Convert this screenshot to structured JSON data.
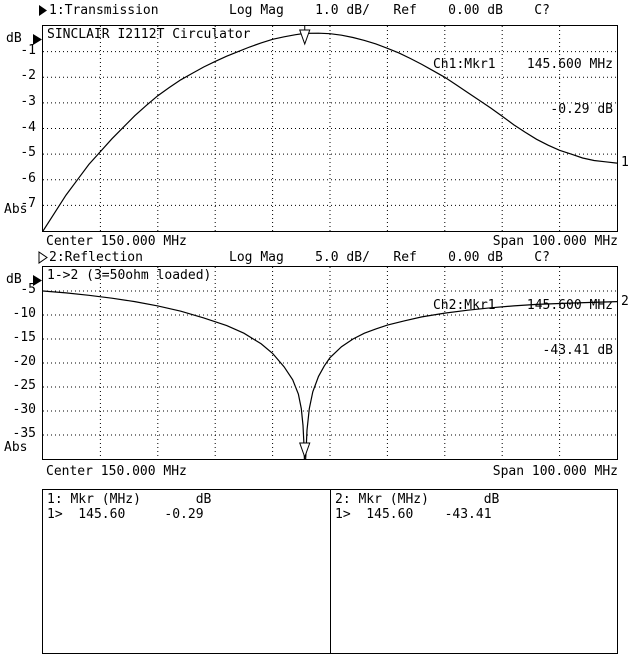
{
  "display": {
    "fg": "#000000",
    "bg": "#ffffff"
  },
  "marker_table": {
    "ch1_header": "1: Mkr (MHz)       dB",
    "ch1_row": "1>  145.60     -0.29",
    "ch2_header": "2: Mkr (MHz)       dB",
    "ch2_row": "1>  145.60    -43.41"
  },
  "chart_data": [
    {
      "type": "line",
      "channel": "1",
      "status_line": "1:Transmission         Log Mag    1.0 dB/   Ref    0.00 dB    C?",
      "title": "SINCLAIR I2112T Circulator",
      "marker_line1": "Ch1:Mkr1    145.600 MHz",
      "marker_line2": "-0.29 dB",
      "y_unit_top": "dB",
      "y_unit_bottom": "Abs",
      "x_center_label": "Center 150.000 MHz",
      "x_span_label": "Span 100.000 MHz",
      "trace_number": "1",
      "xlim": [
        100,
        200
      ],
      "ylim": [
        -8,
        0
      ],
      "scale_db_per_div": 1.0,
      "ref_db": 0.0,
      "divisions": {
        "x": 10,
        "y": 8
      },
      "y_tick_labels": [
        "-1",
        "-2",
        "-3",
        "-4",
        "-5",
        "-6",
        "-7"
      ],
      "marker": {
        "freq_mhz": 145.6,
        "value_db": -0.29,
        "arrow": "top"
      },
      "points": [
        [
          100,
          -8.0
        ],
        [
          102,
          -7.3
        ],
        [
          104,
          -6.6
        ],
        [
          106,
          -6.0
        ],
        [
          108,
          -5.4
        ],
        [
          110,
          -4.9
        ],
        [
          112,
          -4.4
        ],
        [
          114,
          -3.95
        ],
        [
          116,
          -3.5
        ],
        [
          118,
          -3.1
        ],
        [
          120,
          -2.72
        ],
        [
          122,
          -2.4
        ],
        [
          124,
          -2.1
        ],
        [
          126,
          -1.85
        ],
        [
          128,
          -1.6
        ],
        [
          130,
          -1.38
        ],
        [
          132,
          -1.18
        ],
        [
          134,
          -1.0
        ],
        [
          136,
          -0.82
        ],
        [
          138,
          -0.66
        ],
        [
          140,
          -0.52
        ],
        [
          142,
          -0.42
        ],
        [
          144,
          -0.34
        ],
        [
          145.6,
          -0.29
        ],
        [
          148,
          -0.28
        ],
        [
          150,
          -0.3
        ],
        [
          152,
          -0.36
        ],
        [
          154,
          -0.45
        ],
        [
          156,
          -0.56
        ],
        [
          158,
          -0.7
        ],
        [
          160,
          -0.87
        ],
        [
          162,
          -1.05
        ],
        [
          164,
          -1.27
        ],
        [
          166,
          -1.5
        ],
        [
          168,
          -1.75
        ],
        [
          170,
          -2.0
        ],
        [
          172,
          -2.3
        ],
        [
          174,
          -2.6
        ],
        [
          176,
          -2.9
        ],
        [
          178,
          -3.2
        ],
        [
          180,
          -3.52
        ],
        [
          182,
          -3.85
        ],
        [
          184,
          -4.15
        ],
        [
          186,
          -4.42
        ],
        [
          188,
          -4.65
        ],
        [
          190,
          -4.85
        ],
        [
          192,
          -5.0
        ],
        [
          194,
          -5.15
        ],
        [
          196,
          -5.25
        ],
        [
          198,
          -5.3
        ],
        [
          200,
          -5.35
        ]
      ]
    },
    {
      "type": "line",
      "channel": "2",
      "status_line": "2:Reflection           Log Mag    5.0 dB/   Ref    0.00 dB    C?",
      "title": "1->2 (3=50ohm loaded)",
      "marker_line1": "Ch2:Mkr1    145.600 MHz",
      "marker_line2": "-43.41 dB",
      "y_unit_top": "dB",
      "y_unit_bottom": "Abs",
      "x_center_label": "Center 150.000 MHz",
      "x_span_label": "Span 100.000 MHz",
      "trace_number": "2",
      "xlim": [
        100,
        200
      ],
      "ylim": [
        -40,
        0
      ],
      "scale_db_per_div": 5.0,
      "ref_db": 0.0,
      "divisions": {
        "x": 10,
        "y": 8
      },
      "y_tick_labels": [
        "-5",
        "-10",
        "-15",
        "-20",
        "-25",
        "-30",
        "-35"
      ],
      "marker": {
        "freq_mhz": 145.6,
        "value_db": -43.41,
        "arrow": "bottom"
      },
      "points": [
        [
          100,
          -5.0
        ],
        [
          104,
          -5.4
        ],
        [
          108,
          -5.9
        ],
        [
          112,
          -6.5
        ],
        [
          116,
          -7.2
        ],
        [
          120,
          -8.1
        ],
        [
          124,
          -9.2
        ],
        [
          128,
          -10.6
        ],
        [
          132,
          -12.2
        ],
        [
          135,
          -13.8
        ],
        [
          138,
          -16.0
        ],
        [
          140,
          -18.0
        ],
        [
          142,
          -20.8
        ],
        [
          143.5,
          -23.5
        ],
        [
          144.5,
          -26.5
        ],
        [
          145,
          -29.5
        ],
        [
          145.3,
          -33.0
        ],
        [
          145.5,
          -38.0
        ],
        [
          145.6,
          -43.41
        ],
        [
          145.8,
          -39.0
        ],
        [
          146,
          -34.0
        ],
        [
          146.4,
          -29.5
        ],
        [
          147,
          -26.0
        ],
        [
          148,
          -22.8
        ],
        [
          149,
          -20.6
        ],
        [
          150,
          -18.9
        ],
        [
          152,
          -16.6
        ],
        [
          154,
          -15.0
        ],
        [
          156,
          -13.8
        ],
        [
          158,
          -12.9
        ],
        [
          160,
          -12.1
        ],
        [
          163,
          -11.2
        ],
        [
          166,
          -10.4
        ],
        [
          170,
          -9.6
        ],
        [
          174,
          -9.0
        ],
        [
          178,
          -8.5
        ],
        [
          182,
          -8.1
        ],
        [
          186,
          -7.8
        ],
        [
          190,
          -7.6
        ],
        [
          195,
          -7.4
        ],
        [
          200,
          -7.2
        ]
      ]
    }
  ]
}
